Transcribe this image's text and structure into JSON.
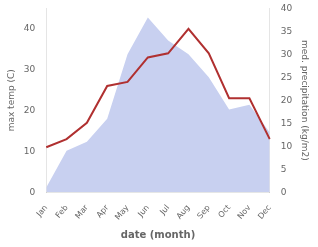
{
  "chart_data": {
    "type": "line",
    "xlabel": "date (month)",
    "ylabel": "max temp (C)",
    "y2label": "med. precipitation (kg/m2)",
    "categories": [
      "Jan",
      "Feb",
      "Mar",
      "Apr",
      "May",
      "Jun",
      "Jul",
      "Aug",
      "Sep",
      "Oct",
      "Nov",
      "Dec"
    ],
    "series": [
      {
        "type": "area",
        "axis": "y2",
        "color": "#c8d0f0",
        "values": [
          1,
          9,
          11,
          16,
          30,
          38,
          33,
          30,
          25,
          18,
          19,
          13
        ]
      },
      {
        "type": "line",
        "color": "#b03030",
        "values": [
          11,
          13,
          17,
          26,
          27,
          33,
          34,
          40,
          34,
          23,
          23,
          13
        ]
      }
    ],
    "ylim": [
      0,
      45
    ],
    "yticks": [
      0,
      10,
      20,
      30,
      40
    ],
    "y2lim": [
      0,
      40
    ],
    "y2ticks": [
      0,
      5,
      10,
      15,
      20,
      25,
      30,
      35,
      40
    ],
    "grid": false
  }
}
